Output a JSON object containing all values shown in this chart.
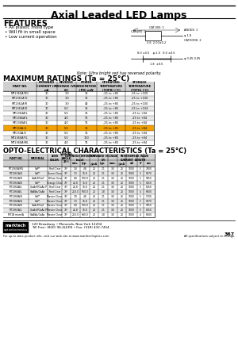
{
  "title": "Axial Leaded LED Lamps",
  "features_title": "FEATURES",
  "features": [
    "All plastic mold type",
    "Will fit in small space",
    "Low current operation"
  ],
  "note": "Note: Ultra bright red has reversed polarity.",
  "max_ratings_title": "MAXIMUM RATINGS (Ta = 25°C)",
  "max_ratings_header": [
    "PART NO.",
    "FORWARD\nCURRENT\n(IF)\nmA",
    "REVERSE\nVOLTAGE\n(VR)\n(V)",
    "POWER\nDISSIPATION\n(PD)\n(mW)",
    "OPERATING\nTEMPERATURE\n(TOPR)\n(°C)",
    "STORAGE\nTEMPERATURE\n(TSTG)\n(°C)"
  ],
  "max_ratings_data": [
    [
      "MT1360A/RG",
      "30",
      "3.0",
      "36",
      "-25 to +85",
      "-25 to +100"
    ],
    [
      "MT1361A/G",
      "30",
      "3.0",
      "36",
      "-25 to +85",
      "-25 to +100"
    ],
    [
      "MT1362A/R",
      "30",
      "3.0",
      "48",
      "-25 to +85",
      "-25 to +100"
    ],
    [
      "MT1363A/D",
      "30",
      "5.0",
      "36",
      "-25 to +85",
      "-25 to +104"
    ],
    [
      "MT1364A/L",
      "30",
      "5.0",
      "36",
      "-25 to +85",
      "-25 to +84"
    ],
    [
      "MT1366A/L",
      "30",
      "4.0",
      "75",
      "-25 to +85",
      "-25 to +84"
    ],
    [
      "MT1368A/L",
      "30",
      "4.0",
      "75",
      "-25 to +85",
      "-25 to +84"
    ],
    [
      "MT134A-G",
      "30",
      "5.0",
      "36",
      "-25 to +85",
      "-25 to +84"
    ],
    [
      "MT134A-R",
      "30",
      "5.0",
      "36",
      "-25 to +85",
      "-25 to +84"
    ],
    [
      "MT1360A/YL",
      "30",
      "5.0",
      "120",
      "-25 to +85",
      "-25 to +84"
    ],
    [
      "MT1368A/WL",
      "30",
      "4.0",
      "75",
      "-25 to +85",
      "-25 to +84"
    ]
  ],
  "opto_title": "OPTO-ELECTRICAL CHARACTERISTICS (Ta = 25°C)",
  "opto_header_row1": [
    "PART NO.",
    "MATERIAL",
    "LENS\nCOLOR",
    "VIEWING\nANGLE\n2θ½",
    "LUMINOUS INTENSITY\n(mcd)",
    "",
    "FORWARD VOLTAGE\n(V)",
    "",
    "REVERSE\nCURRENT",
    "",
    "PEAK WAVE\nLENGTH"
  ],
  "opto_header_row2": [
    "",
    "",
    "",
    "",
    "min.",
    "typ.",
    "@mA",
    "typ.",
    "max.",
    "@mA",
    "uA",
    "V",
    "nm"
  ],
  "opto_data": [
    [
      "MT1360A/RG",
      "GaP*",
      "Red Clear",
      "70°",
      "1.8",
      "4.8",
      "20",
      "2.1",
      "3.0",
      "20",
      "1000",
      "5",
      "7000"
    ],
    [
      "MT1361A/G",
      "GaP*",
      "Green Clear",
      "70°",
      "7.3",
      "16.8",
      "20",
      "2.1",
      "3.0",
      "20",
      "1000",
      "5",
      "5670"
    ],
    [
      "MT1362A/R",
      "GaAsP/GaP",
      "Yellow Clear",
      "70°",
      "6.8",
      "100.8",
      "20",
      "2.1",
      "3.0",
      "20",
      "1000",
      "5",
      "5850"
    ],
    [
      "MT1363A/D",
      "GaP*",
      "Orange Clear",
      "70°",
      "26.8",
      "36.8",
      "20",
      "2.1",
      "3.0",
      "20",
      "1000",
      "5",
      "6350"
    ],
    [
      "MT1364A/L",
      "GaAsP/GaAs P",
      "Red Clear",
      "70°",
      "26.8",
      "16.8",
      "20",
      "2.1",
      "3.0",
      "20",
      "1000",
      "5",
      "6350"
    ],
    [
      "MT1366A/L",
      "GaAlAs/GaAs",
      "Red Clear",
      "70°",
      "250.0",
      "560.0",
      "20",
      "1.8",
      "3.0",
      "20",
      "1000",
      "4",
      "6600"
    ],
    [
      "MT1368A/G",
      "GaP*",
      "Master Clear",
      "70°",
      "7.8",
      "4.8",
      "20",
      "2.1",
      "3.0",
      "20",
      "1000",
      "5",
      "5700"
    ],
    [
      "MT1368A/G",
      "GaP*",
      "Master Clear",
      "70°",
      "7.3",
      "16.8",
      "20",
      "2.1",
      "3.0",
      "20",
      "1000",
      "5",
      "5670"
    ],
    [
      "MT1362A/R",
      "GaAsP/GaP",
      "Master Clear",
      "70°",
      "6.8",
      "100.8",
      "20",
      "2.1",
      "3.0",
      "20",
      "1000",
      "5",
      "5850"
    ],
    [
      "MT1363A/L",
      "GaAsP/GaAs P",
      "Master Clear",
      "70°",
      "26.8",
      "16.8",
      "20",
      "2.1",
      "3.0",
      "20",
      "1000",
      "5",
      "6350"
    ],
    [
      "MT1B mom/A",
      "GaAlAs/GaAs",
      "Master Clear",
      "70°",
      "250.0",
      "640.0",
      "20",
      "1.8",
      "3.0",
      "20",
      "1000",
      "4",
      "6600"
    ]
  ],
  "footer_logo_top": "marktech",
  "footer_logo_bot": "optoelectronics",
  "footer_addr": "120 Broadway • Menands, New York 12204",
  "footer_toll": "Toll Free: (800) 98-4LEDS • Fax: (518) 432-7454",
  "footer_bottom_left": "For up-to-date product info, visit our web site at www.marktechoptics.com",
  "footer_bottom_right": "All specifications subject to change.",
  "page_num": "367",
  "highlight_row_mr": 7,
  "bg_color": "#ffffff"
}
